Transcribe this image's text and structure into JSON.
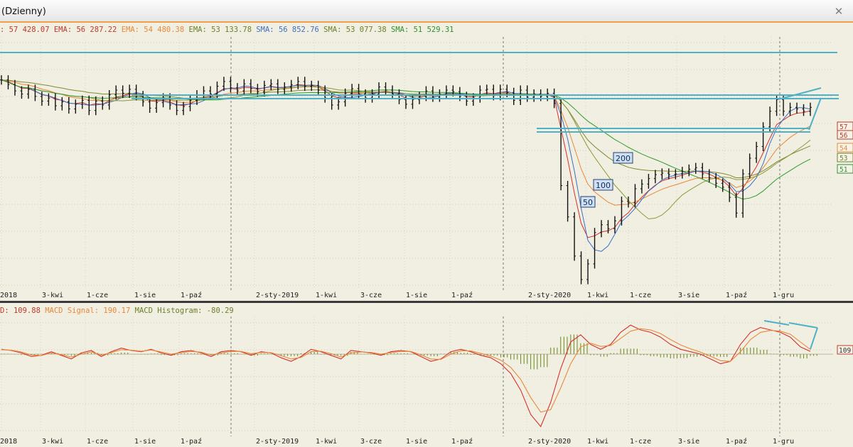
{
  "window": {
    "title": "(Dzienny)"
  },
  "legend": {
    "items": [
      {
        "text": ": 57 428.07",
        "color": "#c0392b"
      },
      {
        "text": "EMA: 56 287.22",
        "color": "#c0392b"
      },
      {
        "text": "EMA: 54 480.38",
        "color": "#e8883a"
      },
      {
        "text": "EMA: 53 133.78",
        "color": "#6b7f2a"
      },
      {
        "text": "SMA: 56 852.76",
        "color": "#3d6fc6"
      },
      {
        "text": "SMA: 53 077.38",
        "color": "#6b7f2a"
      },
      {
        "text": "SMA: 51 529.31",
        "color": "#2f8f2f"
      }
    ]
  },
  "macd_legend": {
    "items": [
      {
        "text": "D: 109.88",
        "color": "#c0392b"
      },
      {
        "text": "MACD Signal: 190.17",
        "color": "#e8883a"
      },
      {
        "text": "MACD Histogram: -80.29",
        "color": "#6b7f2a"
      }
    ]
  },
  "colors": {
    "price": "#111111",
    "ema_fast": "#d2322d",
    "ema_mid": "#e8883a",
    "ema_slow": "#7f8a35",
    "sma_fast": "#3d6fc6",
    "sma_mid": "#8a9a3a",
    "sma_slow": "#2f9a2f",
    "trendline": "#4fb0c6",
    "macd": "#d2322d",
    "signal": "#e8883a",
    "hist": "#6b8a1f"
  },
  "chart_data": [
    {
      "type": "line",
      "panel": "price",
      "x_ticks": [
        "-2018",
        "3-kwi",
        "1-cze",
        "1-sie",
        "1-paź",
        "2-sty-2019",
        "1-kwi",
        "3-cze",
        "1-sie",
        "1-paź",
        "2-sty-2020",
        "1-kwi",
        "1-cze",
        "3-sie",
        "1-paź",
        "1-gru"
      ],
      "price_tags": [
        {
          "text": "57",
          "color": "#c0392b"
        },
        {
          "text": "56",
          "color": "#c0392b"
        },
        {
          "text": "54",
          "color": "#e8883a"
        },
        {
          "text": "53",
          "color": "#6b7f2a"
        },
        {
          "text": "51",
          "color": "#2f8f2f"
        }
      ],
      "annotations": [
        "50",
        "100",
        "200"
      ],
      "close_series": [
        61500,
        60900,
        60100,
        59700,
        60300,
        59400,
        58800,
        59200,
        58200,
        58700,
        57800,
        58400,
        58900,
        57600,
        58800,
        58300,
        59600,
        60200,
        59800,
        60300,
        59500,
        58700,
        57900,
        58600,
        59200,
        58300,
        57600,
        58100,
        58900,
        59600,
        60100,
        59700,
        60700,
        61300,
        60500,
        60100,
        61000,
        60400,
        60000,
        60800,
        61000,
        60300,
        60600,
        60900,
        61300,
        60700,
        60800,
        60200,
        59200,
        58300,
        58700,
        59800,
        60400,
        59700,
        59200,
        59700,
        60600,
        60200,
        59700,
        59000,
        58400,
        59000,
        59400,
        60100,
        59300,
        59700,
        60200,
        60000,
        59400,
        58800,
        59200,
        60200,
        60300,
        59500,
        60300,
        59900,
        58900,
        60200,
        59300,
        59700,
        59400,
        59800,
        58500,
        48000,
        44000,
        39000,
        36000,
        38000,
        42000,
        43000,
        42500,
        43500,
        46000,
        45800,
        47600,
        48200,
        48900,
        49400,
        49600,
        49400,
        49500,
        49800,
        50100,
        50300,
        49500,
        49000,
        48300,
        47800,
        46500,
        44500,
        49500,
        51500,
        53000,
        55500,
        57500,
        59000,
        57500,
        58000,
        57800,
        57500,
        58000
      ],
      "y_range": [
        35000,
        67000
      ]
    },
    {
      "type": "line",
      "panel": "macd",
      "series_names": [
        "MACD",
        "MACD Signal",
        "MACD Histogram"
      ],
      "macd_series": [
        200,
        150,
        50,
        -100,
        -50,
        100,
        -50,
        -200,
        50,
        150,
        -100,
        100,
        250,
        150,
        100,
        200,
        50,
        -50,
        100,
        150,
        50,
        -100,
        100,
        150,
        100,
        -50,
        100,
        50,
        -150,
        -300,
        -100,
        200,
        100,
        -50,
        -200,
        150,
        100,
        50,
        -50,
        100,
        150,
        100,
        -100,
        -300,
        -200,
        100,
        200,
        100,
        -50,
        -150,
        -400,
        -800,
        -1500,
        -2500,
        -3000,
        -2000,
        -600,
        500,
        800,
        400,
        200,
        400,
        900,
        1200,
        1000,
        900,
        700,
        400,
        200,
        100,
        0,
        -200,
        -400,
        -300,
        400,
        900,
        1100,
        1000,
        900,
        700,
        300,
        110
      ],
      "signal_series": [
        180,
        160,
        90,
        -40,
        -60,
        50,
        -20,
        -120,
        0,
        90,
        -40,
        60,
        180,
        160,
        120,
        170,
        90,
        0,
        60,
        110,
        80,
        -40,
        50,
        110,
        110,
        20,
        70,
        60,
        -60,
        -200,
        -140,
        100,
        120,
        20,
        -120,
        50,
        90,
        70,
        0,
        60,
        110,
        110,
        -30,
        -200,
        -220,
        0,
        140,
        130,
        30,
        -80,
        -250,
        -550,
        -1050,
        -1800,
        -2400,
        -2300,
        -1400,
        -400,
        300,
        450,
        320,
        350,
        650,
        950,
        1050,
        1000,
        850,
        600,
        380,
        220,
        80,
        -90,
        -270,
        -300,
        100,
        600,
        900,
        980,
        950,
        820,
        500,
        190
      ],
      "y_range": [
        -3200,
        1500
      ],
      "y_tag": "109"
    }
  ]
}
